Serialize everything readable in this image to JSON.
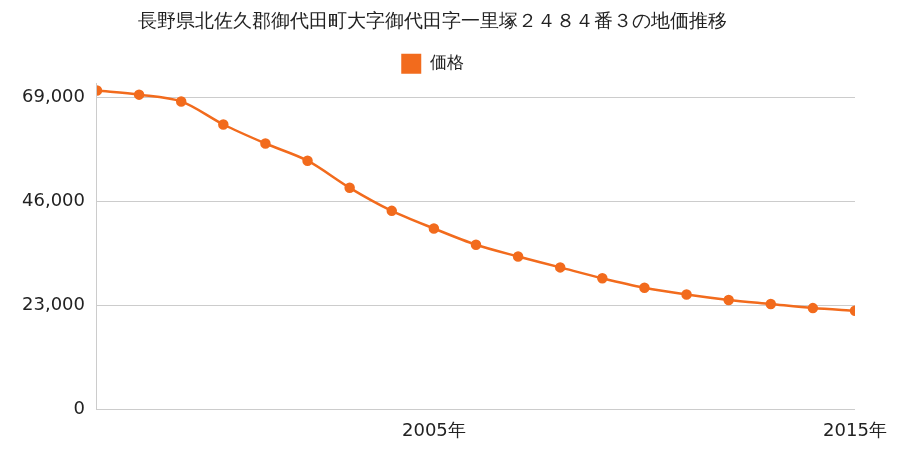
{
  "chart_data": {
    "type": "line",
    "title": "長野県北佐久郡御代田町大字御代田字一里塚２４８４番３の地価推移",
    "categories": [
      null,
      null,
      null,
      null,
      null,
      null,
      null,
      null,
      "2005年",
      null,
      null,
      null,
      null,
      null,
      null,
      null,
      null,
      null,
      "2015年"
    ],
    "series": [
      {
        "name": "価格",
        "color": "#f26b1d",
        "values": [
          70500,
          69600,
          68100,
          63000,
          58800,
          55000,
          49000,
          43900,
          40000,
          36400,
          33800,
          31400,
          29000,
          26900,
          25400,
          24200,
          23300,
          22400,
          21800
        ]
      }
    ],
    "ylim": [
      0,
      72000
    ],
    "yticks": [
      0,
      {
        "value": 23000,
        "label": "23,000"
      },
      {
        "value": 46000,
        "label": "46,000"
      },
      {
        "value": 69000,
        "label": "69,000"
      }
    ],
    "grid": true,
    "legend": "top",
    "marker": "circle"
  }
}
